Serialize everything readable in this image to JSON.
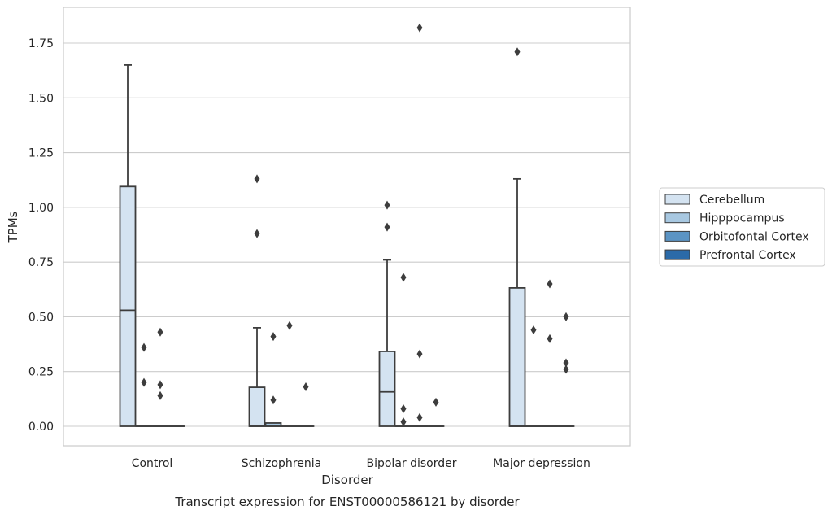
{
  "caption": "Transcript expression for ENST00000586121 by disorder",
  "chart_data": {
    "type": "boxplot",
    "xlabel": "Disorder",
    "ylabel": "TPMs",
    "ylim": [
      -0.09,
      1.92
    ],
    "yticks": [
      "0.00",
      "0.25",
      "0.50",
      "0.75",
      "1.00",
      "1.25",
      "1.50",
      "1.75"
    ],
    "ytick_values": [
      0,
      0.25,
      0.5,
      0.75,
      1.0,
      1.25,
      1.5,
      1.75
    ],
    "grid": true,
    "legend_position": "right",
    "categories": [
      "Control",
      "Schizophrenia",
      "Bipolar disorder",
      "Major depression"
    ],
    "series": [
      {
        "name": "Cerebellum",
        "color": "#d4e3f1",
        "boxes": [
          {
            "q1": 0,
            "median": 0.53,
            "q3": 1.095,
            "whisker_low": 0,
            "whisker_high": 1.65,
            "outliers": []
          },
          {
            "q1": 0,
            "median": 0.0,
            "q3": 0.178,
            "whisker_low": 0,
            "whisker_high": 0.45,
            "outliers": [
              0.88,
              1.13
            ]
          },
          {
            "q1": 0,
            "median": 0.157,
            "q3": 0.342,
            "whisker_low": 0,
            "whisker_high": 0.76,
            "outliers": [
              0.91,
              1.01
            ]
          },
          {
            "q1": 0,
            "median": 0.0,
            "q3": 0.632,
            "whisker_low": 0,
            "whisker_high": 1.13,
            "outliers": [
              1.71
            ]
          }
        ]
      },
      {
        "name": "Hipppocampus",
        "color": "#a8c8e1",
        "boxes": [
          {
            "q1": 0,
            "median": 0,
            "q3": 0,
            "whisker_low": 0,
            "whisker_high": 0,
            "outliers": [
              0.2,
              0.36
            ]
          },
          {
            "q1": 0,
            "median": 0.0,
            "q3": 0.015,
            "whisker_low": 0,
            "whisker_high": 0.015,
            "outliers": [
              0.12,
              0.41
            ]
          },
          {
            "q1": 0,
            "median": 0,
            "q3": 0,
            "whisker_low": 0,
            "whisker_high": 0,
            "outliers": [
              0.02,
              0.08,
              0.68
            ]
          },
          {
            "q1": 0,
            "median": 0,
            "q3": 0,
            "whisker_low": 0,
            "whisker_high": 0,
            "outliers": [
              0.44
            ]
          }
        ]
      },
      {
        "name": "Orbitofontal Cortex",
        "color": "#5b94c4",
        "boxes": [
          {
            "q1": 0,
            "median": 0,
            "q3": 0,
            "whisker_low": 0,
            "whisker_high": 0,
            "outliers": [
              0.14,
              0.19,
              0.43
            ]
          },
          {
            "q1": 0,
            "median": 0,
            "q3": 0,
            "whisker_low": 0,
            "whisker_high": 0,
            "outliers": [
              0.46
            ]
          },
          {
            "q1": 0,
            "median": 0,
            "q3": 0,
            "whisker_low": 0,
            "whisker_high": 0,
            "outliers": [
              0.04,
              0.33,
              1.82
            ]
          },
          {
            "q1": 0,
            "median": 0,
            "q3": 0,
            "whisker_low": 0,
            "whisker_high": 0,
            "outliers": [
              0.4,
              0.65
            ]
          }
        ]
      },
      {
        "name": "Prefrontal Cortex",
        "color": "#2b6aa8",
        "boxes": [
          {
            "q1": 0,
            "median": 0,
            "q3": 0,
            "whisker_low": 0,
            "whisker_high": 0,
            "outliers": []
          },
          {
            "q1": 0,
            "median": 0,
            "q3": 0,
            "whisker_low": 0,
            "whisker_high": 0,
            "outliers": [
              0.18
            ]
          },
          {
            "q1": 0,
            "median": 0,
            "q3": 0,
            "whisker_low": 0,
            "whisker_high": 0,
            "outliers": [
              0.11
            ]
          },
          {
            "q1": 0,
            "median": 0,
            "q3": 0,
            "whisker_low": 0,
            "whisker_high": 0,
            "outliers": [
              0.26,
              0.29,
              0.5
            ]
          }
        ]
      }
    ]
  }
}
